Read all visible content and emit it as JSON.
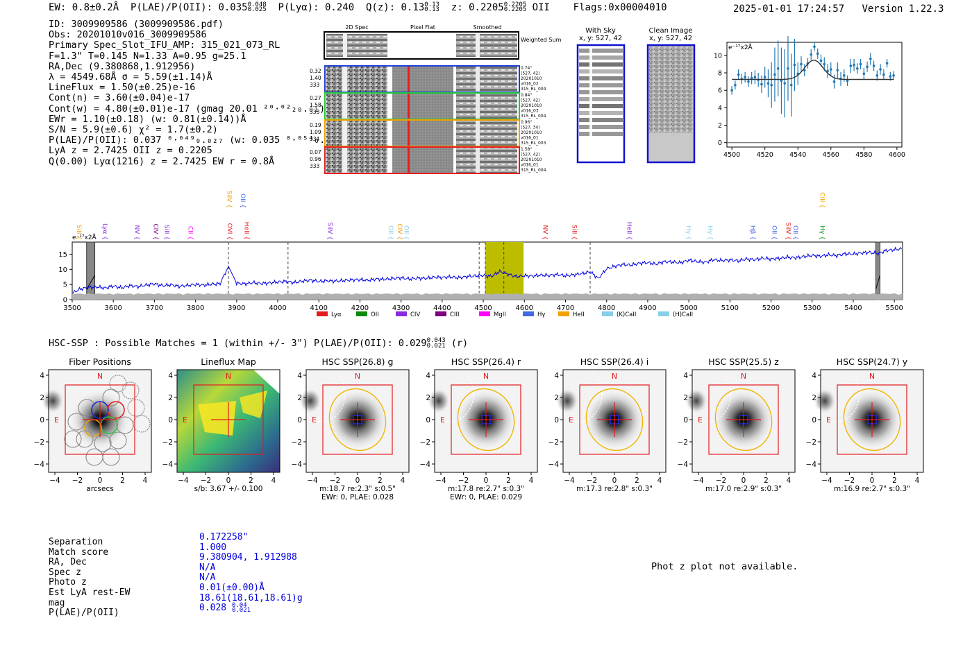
{
  "header": {
    "ew": "EW: 0.8±0.2Å",
    "plae_label": "P(LAE)/P(OII): 0.035",
    "plae_sup": "0.048",
    "plae_sub": "0.025",
    "plya": "P(Lyα): 0.240",
    "qz_label": "Q(z): 0.13",
    "qz_sup": "0.13",
    "qz_sub": "0.13",
    "z_label": "z: 0.2205",
    "z_sup": "0.2205",
    "z_sub": "0.2205",
    "z_line": "OII",
    "flags": "Flags:0x00004010",
    "timestamp": "2025-01-01 17:24:57",
    "version": "Version 1.22.3"
  },
  "info": {
    "lines": [
      "ID: 3009909586 (3009909586.pdf)",
      "Obs: 20201010v016_3009909586",
      "Primary Spec_Slot_IFU_AMP: 315_021_073_RL",
      "F=1.3\"  T=0.145  N=1.33  A=0.95  g=25.1",
      "RA,Dec (9.380868,1.912956)",
      "λ = 4549.68Å  σ = 5.59(±1.14)Å",
      "LineFlux = 1.50(±0.25)e-16",
      "Cont(n) = 3.60(±0.04)e-17",
      "Cont(w) = 4.80(±0.01)e-17 (gmag 20.01 ²⁰·⁰²₂₀.₀₁)",
      "EWr = 1.10(±0.18) (w: 0.81(±0.14))Å",
      "S/N = 5.9(±0.6)  χ² = 1.7(±0.2)",
      "P(LAE)/P(OII): 0.037 ⁰·⁰⁴⁹₀.₀₂₇ (w: 0.035 ⁰·⁰⁵⁴₀.₀₂₇)",
      "LyA z = 2.7425  OII z = 0.2205",
      "Q(0.00) Lyα(1216) z = 2.7425  EW r = 0.8Å"
    ]
  },
  "cutouts": {
    "col_2d": "2D Spec",
    "col_flat": "Pixel Flat",
    "col_smooth": "Smoothed",
    "weighted_sum": "Weighted Sum",
    "rows": [
      {
        "w1": "0.32",
        "w2": "1.40",
        "w3": "333",
        "n1": "0.74\"",
        "n2": "(527, 42)",
        "n3": "20201010",
        "n4": "v016_02",
        "n5": "315_RL_004",
        "color": "#1f3fd6"
      },
      {
        "w1": "0.27",
        "w2": "1.58",
        "w3": "333",
        "n1": "0.84\"",
        "n2": "(527, 42)",
        "n3": "20201010",
        "n4": "v016_03",
        "n5": "315_RL_004",
        "color": "#22c93a"
      },
      {
        "w1": "0.19",
        "w2": "1.09",
        "w3": "334",
        "n1": "0.96\"",
        "n2": "(527, 34)",
        "n3": "20201010",
        "n4": "v016_01",
        "n5": "315_RL_003",
        "color": "#f0a000"
      },
      {
        "w1": "0.07",
        "w2": "0.96",
        "w3": "333",
        "n1": "1.58\"",
        "n2": "(527, 42)",
        "n3": "20201010",
        "n4": "v016_01",
        "n5": "315_RL_004",
        "color": "#e02020"
      }
    ],
    "with_sky_title": "With Sky",
    "with_sky_xy": "x, y: 527, 42",
    "clean_title": "Clean Image",
    "clean_xy": "x, y: 527, 42"
  },
  "colors": {
    "spectrum": "#0000e0",
    "fit_points": "#1f77b4",
    "window": "#bdbd00",
    "lya": "#e41a1c",
    "oii": "#0a8a0a",
    "civ": "#8a2be2",
    "ciii": "#800080",
    "mgii": "#ff00ff",
    "hgamma": "#4169e1",
    "heii": "#f5a000",
    "kcaii": "#87ceeb",
    "hcaii": "#87ceeb"
  },
  "chart_data": [
    {
      "type": "scatter",
      "name": "line-fit",
      "ylabel": "e⁻¹⁷x2Å",
      "xlim": [
        4497,
        4603
      ],
      "ylim": [
        -0.5,
        11.5
      ],
      "xticks": [
        4500,
        4520,
        4540,
        4560,
        4580,
        4600
      ],
      "yticks": [
        0,
        2,
        4,
        6,
        8,
        10
      ],
      "x": [
        4500,
        4502,
        4504,
        4506,
        4508,
        4510,
        4512,
        4514,
        4516,
        4518,
        4520,
        4522,
        4524,
        4526,
        4528,
        4530,
        4532,
        4534,
        4536,
        4538,
        4540,
        4542,
        4544,
        4546,
        4548,
        4550,
        4552,
        4554,
        4556,
        4558,
        4560,
        4562,
        4564,
        4566,
        4568,
        4570,
        4572,
        4574,
        4576,
        4578,
        4580,
        4582,
        4584,
        4586,
        4588,
        4590,
        4592,
        4594,
        4596,
        4598
      ],
      "y": [
        6.0,
        6.6,
        7.8,
        7.3,
        7.5,
        7.0,
        7.4,
        7.5,
        7.2,
        6.7,
        7.5,
        6.8,
        6.6,
        7.8,
        8.5,
        7.1,
        6.8,
        8.5,
        6.6,
        8.9,
        7.9,
        9.0,
        8.3,
        9.1,
        10.1,
        11.0,
        10.2,
        9.4,
        9.0,
        8.2,
        8.4,
        7.0,
        8.3,
        7.3,
        7.7,
        7.1,
        8.8,
        8.9,
        8.5,
        9.0,
        7.9,
        8.7,
        9.6,
        8.8,
        7.7,
        8.4,
        7.8,
        9.1,
        7.6,
        7.7
      ],
      "err": [
        0.5,
        0.5,
        0.6,
        0.6,
        0.6,
        0.6,
        0.7,
        0.8,
        0.8,
        1.0,
        1.2,
        1.6,
        2.6,
        3.1,
        3.2,
        3.8,
        3.9,
        3.7,
        3.6,
        3.0,
        1.3,
        0.9,
        0.7,
        0.6,
        0.6,
        0.5,
        0.6,
        0.7,
        0.8,
        0.8,
        0.8,
        0.8,
        0.9,
        0.8,
        0.7,
        0.6,
        0.8,
        0.7,
        0.6,
        0.6,
        0.7,
        0.6,
        0.7,
        0.6,
        0.6,
        0.6,
        0.6,
        0.5,
        0.5,
        0.5
      ],
      "model_baseline": 7.25,
      "model_amp": 2.2,
      "model_center": 4549.68,
      "model_sigma": 5.59,
      "zero_line": 0
    },
    {
      "type": "line",
      "name": "full-spectrum",
      "ylabel": "e⁻¹⁷x2Å",
      "xlim": [
        3500,
        5520
      ],
      "ylim": [
        0,
        19
      ],
      "xticks": [
        3500,
        3600,
        3700,
        3800,
        3900,
        4000,
        4100,
        4200,
        4300,
        4400,
        4500,
        4600,
        4700,
        4800,
        4900,
        5000,
        5100,
        5200,
        5300,
        5400,
        5500
      ],
      "yticks": [
        0,
        5,
        10,
        15
      ],
      "x": [
        3500,
        3520,
        3540,
        3560,
        3580,
        3600,
        3620,
        3640,
        3660,
        3680,
        3700,
        3720,
        3740,
        3760,
        3780,
        3800,
        3820,
        3840,
        3860,
        3880,
        3900,
        3920,
        3940,
        3960,
        3980,
        4000,
        4020,
        4040,
        4060,
        4080,
        4100,
        4120,
        4140,
        4160,
        4180,
        4200,
        4220,
        4240,
        4260,
        4280,
        4300,
        4320,
        4340,
        4360,
        4380,
        4400,
        4420,
        4440,
        4460,
        4480,
        4500,
        4520,
        4540,
        4560,
        4580,
        4600,
        4620,
        4640,
        4660,
        4680,
        4700,
        4720,
        4740,
        4760,
        4780,
        4800,
        4820,
        4840,
        4860,
        4880,
        4900,
        4920,
        4940,
        4960,
        4980,
        5000,
        5020,
        5040,
        5060,
        5080,
        5100,
        5120,
        5140,
        5160,
        5180,
        5200,
        5220,
        5240,
        5260,
        5280,
        5300,
        5320,
        5340,
        5360,
        5380,
        5400,
        5420,
        5440,
        5460,
        5480,
        5500,
        5520
      ],
      "y": [
        2.2,
        3.5,
        4.0,
        4.2,
        3.8,
        4.5,
        3.9,
        4.6,
        4.3,
        4.8,
        5.2,
        4.6,
        4.9,
        4.4,
        4.7,
        5.0,
        4.8,
        5.1,
        5.3,
        11.0,
        5.4,
        5.2,
        5.6,
        5.3,
        5.5,
        5.8,
        6.0,
        5.6,
        6.1,
        6.4,
        6.0,
        6.2,
        6.1,
        6.3,
        6.5,
        6.6,
        6.4,
        6.8,
        6.7,
        7.0,
        7.2,
        6.8,
        7.1,
        7.0,
        7.4,
        7.3,
        7.5,
        7.2,
        7.6,
        7.8,
        8.0,
        7.7,
        9.3,
        8.4,
        7.6,
        7.9,
        7.8,
        8.1,
        8.0,
        8.3,
        7.9,
        8.2,
        8.6,
        9.2,
        7.0,
        10.2,
        11.0,
        11.6,
        11.4,
        12.0,
        12.2,
        11.7,
        12.5,
        12.4,
        12.2,
        13.0,
        12.6,
        12.3,
        13.2,
        12.9,
        13.1,
        12.8,
        13.4,
        13.2,
        13.7,
        13.4,
        13.6,
        14.0,
        13.8,
        14.2,
        14.6,
        14.3,
        14.8,
        14.5,
        15.1,
        15.0,
        15.4,
        15.6,
        15.2,
        16.2,
        16.5,
        16.8
      ],
      "sky_level": 2.0,
      "masked_regions": [
        [
          3535,
          3555
        ],
        [
          5455,
          5465
        ]
      ],
      "highlight_window": [
        4505,
        4598
      ],
      "dashed_lines": [
        3880,
        4025,
        4490,
        4505,
        4550,
        4760
      ],
      "legend": [
        {
          "label": "Lyα",
          "color": "#e41a1c"
        },
        {
          "label": "OII",
          "color": "#0a8a0a"
        },
        {
          "label": "CIV",
          "color": "#8a2be2"
        },
        {
          "label": "CIII",
          "color": "#800080"
        },
        {
          "label": "MgII",
          "color": "#ff00ff"
        },
        {
          "label": "Hγ",
          "color": "#4169e1"
        },
        {
          "label": "HeII",
          "color": "#f5a000"
        },
        {
          "label": "(K)CaII",
          "color": "#87ceeb"
        },
        {
          "label": "(H)CaII",
          "color": "#87ceeb"
        }
      ],
      "line_marks": [
        {
          "label": "SiII",
          "x": 3507,
          "row": "low",
          "color": "#f5a000"
        },
        {
          "label": "Lyα",
          "x": 3570,
          "row": "low",
          "color": "#8a2be2"
        },
        {
          "label": "NV",
          "x": 3648,
          "row": "low",
          "color": "#8a2be2"
        },
        {
          "label": "CIV",
          "x": 3693,
          "row": "low",
          "color": "#800080"
        },
        {
          "label": "SiII",
          "x": 3720,
          "row": "low",
          "color": "#8a2be2"
        },
        {
          "label": "CII",
          "x": 3778,
          "row": "low",
          "color": "#ff00ff"
        },
        {
          "label": "OVI",
          "x": 3873,
          "row": "low",
          "color": "#e41a1c"
        },
        {
          "label": "SiIV",
          "x": 3872,
          "row": "high",
          "color": "#f5a000"
        },
        {
          "label": "OII",
          "x": 3905,
          "row": "high",
          "color": "#4169e1"
        },
        {
          "label": "HeII",
          "x": 3915,
          "row": "low",
          "color": "#e41a1c"
        },
        {
          "label": "SiIV",
          "x": 4117,
          "row": "low",
          "color": "#8a2be2"
        },
        {
          "label": "OII",
          "x": 4265,
          "row": "low",
          "color": "#87ceeb"
        },
        {
          "label": "CIV",
          "x": 4287,
          "row": "low",
          "color": "#f5a000"
        },
        {
          "label": "OII",
          "x": 4303,
          "row": "low",
          "color": "#87ceeb"
        },
        {
          "label": "NV",
          "x": 4641,
          "row": "low",
          "color": "#e41a1c"
        },
        {
          "label": "SiII",
          "x": 4712,
          "row": "low",
          "color": "#e41a1c"
        },
        {
          "label": "HeII",
          "x": 4845,
          "row": "low",
          "color": "#8a2be2"
        },
        {
          "label": "Hγ",
          "x": 4990,
          "row": "low",
          "color": "#87ceeb"
        },
        {
          "label": "Hγ",
          "x": 5042,
          "row": "low",
          "color": "#87ceeb"
        },
        {
          "label": "Hβ",
          "x": 5146,
          "row": "low",
          "color": "#4169e1"
        },
        {
          "label": "OII",
          "x": 5198,
          "row": "low",
          "color": "#4169e1"
        },
        {
          "label": "SiIV",
          "x": 5232,
          "row": "low",
          "color": "#e41a1c"
        },
        {
          "label": "OII",
          "x": 5250,
          "row": "low",
          "color": "#4169e1"
        },
        {
          "label": "CIII",
          "x": 5315,
          "row": "high",
          "color": "#f5a000"
        },
        {
          "label": "Hγ",
          "x": 5315,
          "row": "low",
          "color": "#0a8a0a"
        }
      ]
    }
  ],
  "hsc": {
    "heading_main": "HSC-SSP : Possible Matches = 1 (within +/- 3\")  P(LAE)/P(OII): 0.029",
    "heading_sup": "0.043",
    "heading_sub": "0.021",
    "heading_band": "(r)",
    "ticks": [
      "-4",
      "-2",
      "0",
      "2",
      "4"
    ],
    "n_label": "N",
    "e_label": "E",
    "panels": [
      {
        "title": "Fiber Positions",
        "cap1": "arcsecs",
        "cap2": ""
      },
      {
        "title": "Lineflux Map",
        "cap1": "s/b: 3.67 +/- 0.100",
        "cap2": ""
      },
      {
        "title": "HSC SSP(26.8) g",
        "cap1": "m:18.7  re:2.3\"  s:0.5\"",
        "cap2": "EWr: 0, PLAE: 0.028"
      },
      {
        "title": "HSC SSP(26.4) r",
        "cap1": "m:17.8  re:2.7\"  s:0.3\"",
        "cap2": "EWr: 0, PLAE: 0.029"
      },
      {
        "title": "HSC SSP(26.4) i",
        "cap1": "m:17.3  re:2.8\"  s:0.3\"",
        "cap2": ""
      },
      {
        "title": "HSC SSP(25.5) z",
        "cap1": "m:17.0  re:2.9\"  s:0.3\"",
        "cap2": ""
      },
      {
        "title": "HSC SSP(24.7) y",
        "cap1": "m:16.9  re:2.7\"  s:0.3\"",
        "cap2": ""
      }
    ]
  },
  "match": {
    "labels": [
      "Separation",
      "Match score",
      "RA, Dec",
      "Spec z",
      "Photo z",
      "Est LyA rest-EW",
      "mag",
      "P(LAE)/P(OII)"
    ],
    "values": [
      "0.172258\"",
      "1.000",
      "9.380904, 1.912988",
      "N/A",
      "N/A",
      "0.01(±0.00)Å",
      "18.61(18.61,18.61)g",
      "0.028"
    ],
    "plae_sup": "0.04",
    "plae_sub": "0.021",
    "photz_msg": "Phot z plot not available."
  }
}
